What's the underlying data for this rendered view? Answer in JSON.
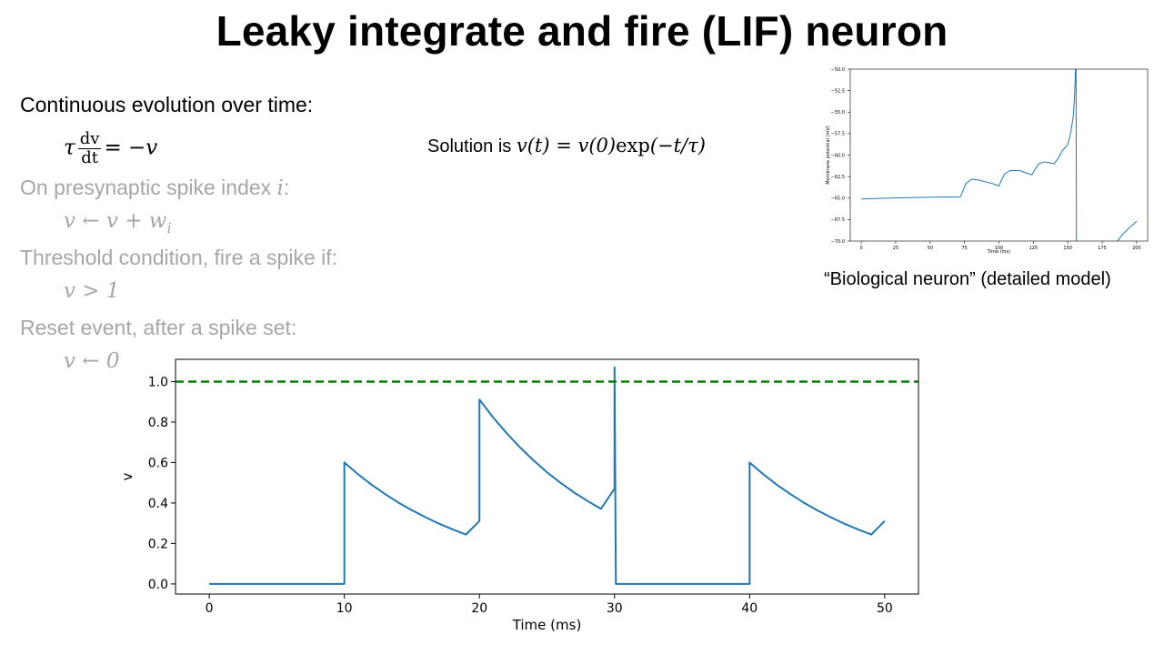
{
  "title": "Leaky integrate and fire (LIF) neuron",
  "rules": {
    "continuous_label": "Continuous evolution over time:",
    "continuous_eq": {
      "lhs": "τ",
      "num": "dv",
      "den": "dt",
      "rhs": "= −v"
    },
    "solution_prefix": "Solution is ",
    "solution_eq_a": "v(t) = v(0)",
    "solution_eq_b": "exp",
    "solution_eq_c": "(−t/τ)",
    "presyn_label": "On presynaptic spike index ",
    "presyn_index": "i",
    "presyn_colon": ":",
    "presyn_eq": "v ← v + w",
    "presyn_sub": "i",
    "threshold_label": "Threshold condition, fire a spike if:",
    "threshold_eq": "v > 1",
    "reset_label": "Reset event, after a spike set:",
    "reset_eq": "v ← 0"
  },
  "bio_caption": "“Biological neuron” (detailed model)",
  "chart_data": [
    {
      "type": "line",
      "title": "",
      "xlabel": "Time (ms)",
      "ylabel": "v",
      "xlim": [
        -2.5,
        52.5
      ],
      "ylim": [
        -0.05,
        1.11
      ],
      "xticks": [
        0,
        10,
        20,
        30,
        40,
        50
      ],
      "yticks": [
        0.0,
        0.2,
        0.4,
        0.6,
        0.8,
        1.0
      ],
      "xtick_labels": [
        "0",
        "10",
        "20",
        "30",
        "40",
        "50"
      ],
      "ytick_labels": [
        "0.0",
        "0.2",
        "0.4",
        "0.6",
        "0.8",
        "1.0"
      ],
      "grid": false,
      "series": [
        {
          "color": "#1f77b4",
          "points": [
            [
              0,
              0
            ],
            [
              10,
              0
            ],
            [
              10,
              0.6
            ],
            [
              11,
              0.543
            ],
            [
              12,
              0.491
            ],
            [
              13,
              0.445
            ],
            [
              14,
              0.402
            ],
            [
              15,
              0.364
            ],
            [
              16,
              0.33
            ],
            [
              17,
              0.298
            ],
            [
              18,
              0.27
            ],
            [
              19,
              0.244
            ],
            [
              20,
              0.311
            ],
            [
              20,
              0.911
            ],
            [
              21,
              0.824
            ],
            [
              22,
              0.746
            ],
            [
              23,
              0.675
            ],
            [
              24,
              0.611
            ],
            [
              25,
              0.552
            ],
            [
              26,
              0.5
            ],
            [
              27,
              0.452
            ],
            [
              28,
              0.41
            ],
            [
              29,
              0.371
            ],
            [
              30,
              0.471
            ],
            [
              30,
              1.07
            ],
            [
              30.1,
              0
            ],
            [
              40,
              0
            ],
            [
              40,
              0.6
            ],
            [
              41,
              0.543
            ],
            [
              42,
              0.491
            ],
            [
              43,
              0.445
            ],
            [
              44,
              0.402
            ],
            [
              45,
              0.364
            ],
            [
              46,
              0.33
            ],
            [
              47,
              0.298
            ],
            [
              48,
              0.27
            ],
            [
              49,
              0.244
            ],
            [
              50,
              0.311
            ]
          ]
        },
        {
          "color": "#008000",
          "dashed": true,
          "points": [
            [
              -2.5,
              1.0
            ],
            [
              52.5,
              1.0
            ]
          ]
        }
      ]
    },
    {
      "type": "line",
      "title": "",
      "xlabel": "Time (ms)",
      "ylabel": "Membrane potential (mV)",
      "xlim": [
        -8,
        208
      ],
      "ylim": [
        -70,
        -50
      ],
      "xticks": [
        0,
        25,
        50,
        75,
        100,
        125,
        150,
        175,
        200
      ],
      "yticks": [
        -70.0,
        -67.5,
        -65.0,
        -62.5,
        -60.0,
        -57.5,
        -55.0,
        -52.5,
        -50.0
      ],
      "xtick_labels": [
        "0",
        "25",
        "50",
        "75",
        "100",
        "125",
        "150",
        "175",
        "200"
      ],
      "ytick_labels": [
        "−70.0",
        "−67.5",
        "−65.0",
        "−62.5",
        "−60.0",
        "−57.5",
        "−55.0",
        "−52.5",
        "−50.0"
      ],
      "grid": false,
      "series": [
        {
          "color": "#1f77b4",
          "points": [
            [
              0,
              -65.1
            ],
            [
              20,
              -65.0
            ],
            [
              50,
              -64.9
            ],
            [
              72,
              -64.85
            ],
            [
              73,
              -64.5
            ],
            [
              76,
              -63.3
            ],
            [
              80,
              -62.8
            ],
            [
              85,
              -62.9
            ],
            [
              95,
              -63.3
            ],
            [
              100,
              -63.6
            ],
            [
              101,
              -63.2
            ],
            [
              104,
              -62.2
            ],
            [
              108,
              -61.8
            ],
            [
              115,
              -61.8
            ],
            [
              124,
              -62.3
            ],
            [
              126,
              -61.7
            ],
            [
              129,
              -61.0
            ],
            [
              133,
              -60.8
            ],
            [
              137,
              -60.9
            ],
            [
              140,
              -61.0
            ],
            [
              143,
              -60.4
            ],
            [
              146,
              -59.5
            ],
            [
              150,
              -58.8
            ],
            [
              152,
              -57.5
            ],
            [
              154,
              -55.5
            ],
            [
              155,
              -53
            ],
            [
              155.6,
              -50
            ],
            [
              156,
              -50
            ],
            [
              156.3,
              -70
            ]
          ]
        },
        {
          "color": "#1f77b4",
          "points": [
            [
              186,
              -70
            ],
            [
              190,
              -69.2
            ],
            [
              195,
              -68.4
            ],
            [
              200,
              -67.7
            ]
          ]
        }
      ]
    }
  ]
}
